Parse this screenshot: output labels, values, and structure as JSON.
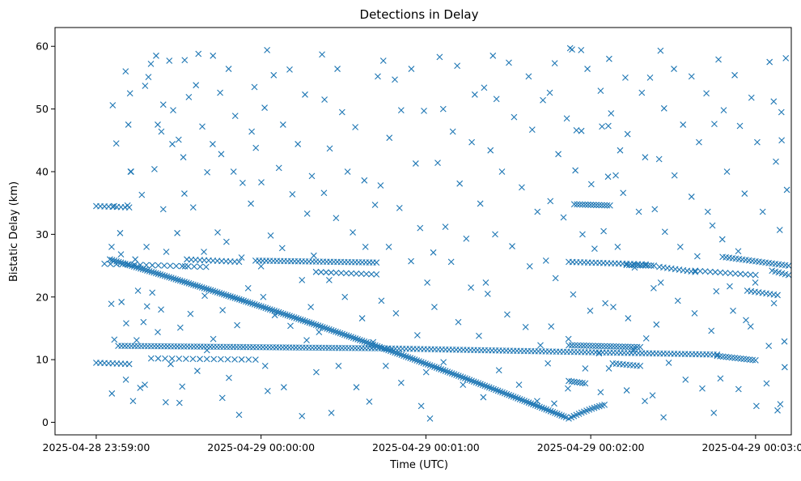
{
  "chart_data": {
    "type": "scatter",
    "title": "Detections in Delay",
    "xlabel": "Time (UTC)",
    "ylabel": "Bistatic Delay (km)",
    "marker": "x",
    "color": "#1f77b4",
    "x_unit": "seconds relative to 2025-04-28 23:59:00",
    "xlim": [
      -15,
      253
    ],
    "ylim": [
      -2,
      63
    ],
    "x_ticks": [
      {
        "value": 0,
        "label": "2025-04-28 23:59:00"
      },
      {
        "value": 60,
        "label": "2025-04-29 00:00:00"
      },
      {
        "value": 120,
        "label": "2025-04-29 00:01:00"
      },
      {
        "value": 180,
        "label": "2025-04-29 00:02:00"
      },
      {
        "value": 240,
        "label": "2025-04-29 00:03:00"
      }
    ],
    "y_ticks": [
      0,
      10,
      20,
      30,
      40,
      50,
      60
    ],
    "grid": false,
    "track_segments": [
      {
        "name": "descending-track",
        "x_start": 5,
        "x_end": 171,
        "y_start": 26,
        "y_end": 0.8,
        "curvature": 0.15,
        "step": 0.8
      },
      {
        "name": "track-12km",
        "x_start": 8,
        "x_end": 105,
        "y_start": 12.2,
        "y_end": 11.8,
        "curvature": 0,
        "step": 1.2
      },
      {
        "name": "track-12km-late",
        "x_start": 172,
        "x_end": 198,
        "y_start": 12.3,
        "y_end": 12.0,
        "curvature": 0,
        "step": 1.1
      },
      {
        "name": "track-11km",
        "x_start": 105,
        "x_end": 226,
        "y_start": 11.8,
        "y_end": 10.8,
        "curvature": 0,
        "step": 1.3
      },
      {
        "name": "track-10km",
        "x_start": 226,
        "x_end": 240,
        "y_start": 10.6,
        "y_end": 9.9,
        "curvature": 0,
        "step": 1.1
      },
      {
        "name": "track-10km-early",
        "x_start": 20,
        "x_end": 58,
        "y_start": 10.2,
        "y_end": 10.0,
        "curvature": 0,
        "step": 2.5
      },
      {
        "name": "track-25km-early",
        "x_start": 3,
        "x_end": 40,
        "y_start": 25.3,
        "y_end": 24.8,
        "curvature": 0,
        "step": 2.2
      },
      {
        "name": "track-26km-1",
        "x_start": 33,
        "x_end": 52,
        "y_start": 26.0,
        "y_end": 25.6,
        "curvature": 0,
        "step": 1.6
      },
      {
        "name": "track-26km-2",
        "x_start": 58,
        "x_end": 102,
        "y_start": 25.8,
        "y_end": 25.5,
        "curvature": 0,
        "step": 1.3
      },
      {
        "name": "track-24km-1",
        "x_start": 80,
        "x_end": 102,
        "y_start": 24.0,
        "y_end": 23.6,
        "curvature": 0,
        "step": 1.8
      },
      {
        "name": "track-25km-mid",
        "x_start": 172,
        "x_end": 200,
        "y_start": 25.6,
        "y_end": 25.2,
        "curvature": 0,
        "step": 1.4
      },
      {
        "name": "track-25km-2",
        "x_start": 193,
        "x_end": 203,
        "y_start": 25.1,
        "y_end": 25.0,
        "curvature": 0,
        "step": 1.0
      },
      {
        "name": "track-24km-2",
        "x_start": 205,
        "x_end": 218,
        "y_start": 24.8,
        "y_end": 24.0,
        "curvature": 0,
        "step": 1.4
      },
      {
        "name": "track-24km-late",
        "x_start": 218,
        "x_end": 240,
        "y_start": 24.2,
        "y_end": 23.5,
        "curvature": 0,
        "step": 1.8
      },
      {
        "name": "track-26km-late",
        "x_start": 228,
        "x_end": 252,
        "y_start": 26.4,
        "y_end": 25.0,
        "curvature": 0,
        "step": 1.2
      },
      {
        "name": "track-21km-late",
        "x_start": 237,
        "x_end": 248,
        "y_start": 21.0,
        "y_end": 20.3,
        "curvature": 0,
        "step": 1.3
      },
      {
        "name": "track-24km-end",
        "x_start": 246,
        "x_end": 252,
        "y_start": 24.2,
        "y_end": 23.5,
        "curvature": 0,
        "step": 1.2
      },
      {
        "name": "track-35km-mid",
        "x_start": 174,
        "x_end": 187,
        "y_start": 34.8,
        "y_end": 34.6,
        "curvature": 0,
        "step": 1.0
      },
      {
        "name": "track-6km",
        "x_start": 172,
        "x_end": 178,
        "y_start": 6.6,
        "y_end": 6.2,
        "curvature": 0,
        "step": 1.0
      },
      {
        "name": "track-9km",
        "x_start": 188,
        "x_end": 198,
        "y_start": 9.4,
        "y_end": 9.0,
        "curvature": 0,
        "step": 1.3
      },
      {
        "name": "track-9km-early",
        "x_start": 0,
        "x_end": 12,
        "y_start": 9.5,
        "y_end": 9.3,
        "curvature": 0,
        "step": 1.5
      },
      {
        "name": "rising-track",
        "x_start": 172,
        "x_end": 185,
        "y_start": 0.6,
        "y_end": 2.8,
        "curvature": -0.3,
        "step": 0.9
      },
      {
        "name": "track-35km-early",
        "x_start": 0,
        "x_end": 12,
        "y_start": 34.5,
        "y_end": 34.3,
        "curvature": 0,
        "step": 1.5
      }
    ],
    "scattered_points": [
      [
        6,
        50.6
      ],
      [
        7.3,
        44.5
      ],
      [
        10.7,
        56.0
      ],
      [
        12.3,
        52.5
      ],
      [
        11.7,
        47.5
      ],
      [
        12.5,
        40.0
      ],
      [
        11.4,
        34.6
      ],
      [
        6.5,
        34.5
      ],
      [
        8.7,
        30.2
      ],
      [
        9.0,
        26.8
      ],
      [
        5.6,
        28.0
      ],
      [
        9.2,
        19.2
      ],
      [
        5.5,
        18.9
      ],
      [
        10.9,
        15.8
      ],
      [
        6.6,
        13.2
      ],
      [
        10.8,
        6.8
      ],
      [
        5.7,
        4.6
      ],
      [
        19.9,
        57.2
      ],
      [
        21.8,
        58.5
      ],
      [
        17.8,
        53.7
      ],
      [
        19.0,
        55.1
      ],
      [
        26.6,
        57.7
      ],
      [
        24.4,
        50.7
      ],
      [
        22.4,
        47.5
      ],
      [
        23.7,
        46.4
      ],
      [
        27.7,
        44.4
      ],
      [
        21.2,
        40.4
      ],
      [
        16.6,
        36.3
      ],
      [
        24.4,
        34.0
      ],
      [
        18.3,
        28.0
      ],
      [
        25.5,
        27.2
      ],
      [
        20.4,
        20.7
      ],
      [
        18.5,
        18.5
      ],
      [
        23.6,
        18.0
      ],
      [
        17.2,
        16.0
      ],
      [
        22.4,
        14.4
      ],
      [
        27.1,
        9.3
      ],
      [
        17.7,
        6.0
      ],
      [
        25.3,
        3.2
      ],
      [
        32.2,
        57.8
      ],
      [
        33.7,
        51.9
      ],
      [
        36.3,
        53.8
      ],
      [
        38.6,
        47.2
      ],
      [
        31.7,
        42.3
      ],
      [
        40.4,
        39.9
      ],
      [
        32.1,
        36.5
      ],
      [
        35.3,
        34.3
      ],
      [
        39.2,
        27.2
      ],
      [
        32.3,
        24.9
      ],
      [
        39.5,
        20.2
      ],
      [
        34.3,
        17.3
      ],
      [
        30.6,
        15.1
      ],
      [
        40.3,
        11.5
      ],
      [
        36.8,
        8.2
      ],
      [
        31.3,
        5.7
      ],
      [
        30.3,
        3.1
      ],
      [
        42.5,
        58.5
      ],
      [
        45.1,
        52.6
      ],
      [
        48.2,
        56.4
      ],
      [
        50.6,
        48.9
      ],
      [
        42.4,
        44.4
      ],
      [
        45.5,
        42.8
      ],
      [
        50.0,
        40.0
      ],
      [
        53.3,
        38.2
      ],
      [
        56.3,
        34.9
      ],
      [
        44.2,
        30.3
      ],
      [
        47.4,
        28.8
      ],
      [
        52.9,
        26.3
      ],
      [
        55.3,
        21.4
      ],
      [
        46.0,
        17.9
      ],
      [
        51.3,
        15.5
      ],
      [
        42.6,
        13.3
      ],
      [
        48.3,
        7.1
      ],
      [
        45.9,
        3.9
      ],
      [
        52.0,
        1.2
      ],
      [
        62.2,
        59.4
      ],
      [
        64.6,
        55.4
      ],
      [
        70.4,
        56.3
      ],
      [
        76.0,
        52.3
      ],
      [
        61.3,
        50.2
      ],
      [
        68.0,
        47.5
      ],
      [
        73.4,
        44.4
      ],
      [
        66.5,
        40.6
      ],
      [
        60.1,
        38.3
      ],
      [
        71.4,
        36.4
      ],
      [
        76.8,
        33.3
      ],
      [
        63.5,
        29.8
      ],
      [
        67.7,
        27.8
      ],
      [
        74.9,
        22.7
      ],
      [
        60.8,
        20.0
      ],
      [
        65.0,
        17.1
      ],
      [
        70.7,
        15.4
      ],
      [
        76.6,
        13.1
      ],
      [
        61.5,
        9.0
      ],
      [
        68.3,
        5.6
      ],
      [
        74.9,
        1.0
      ],
      [
        82.2,
        58.7
      ],
      [
        87.8,
        56.4
      ],
      [
        83.1,
        51.5
      ],
      [
        89.5,
        49.5
      ],
      [
        94.3,
        47.1
      ],
      [
        85.0,
        43.7
      ],
      [
        91.5,
        40.0
      ],
      [
        97.6,
        38.6
      ],
      [
        82.9,
        36.6
      ],
      [
        87.3,
        32.6
      ],
      [
        93.4,
        30.3
      ],
      [
        98.0,
        28.0
      ],
      [
        84.8,
        22.7
      ],
      [
        90.5,
        20.0
      ],
      [
        96.8,
        16.6
      ],
      [
        81.1,
        14.4
      ],
      [
        88.2,
        9.0
      ],
      [
        94.7,
        5.6
      ],
      [
        99.4,
        3.3
      ],
      [
        85.6,
        1.5
      ],
      [
        104.5,
        57.7
      ],
      [
        108.7,
        54.7
      ],
      [
        114.7,
        56.4
      ],
      [
        111.0,
        49.8
      ],
      [
        106.7,
        45.4
      ],
      [
        116.3,
        41.3
      ],
      [
        103.5,
        37.8
      ],
      [
        110.4,
        34.2
      ],
      [
        117.9,
        31.0
      ],
      [
        106.5,
        28.0
      ],
      [
        114.6,
        25.7
      ],
      [
        120.5,
        22.3
      ],
      [
        103.8,
        19.4
      ],
      [
        109.1,
        17.4
      ],
      [
        116.9,
        13.9
      ],
      [
        105.4,
        9.0
      ],
      [
        111.0,
        6.3
      ],
      [
        118.3,
        2.6
      ],
      [
        125.0,
        58.3
      ],
      [
        131.4,
        56.9
      ],
      [
        137.8,
        52.3
      ],
      [
        126.3,
        50.0
      ],
      [
        129.8,
        46.4
      ],
      [
        136.7,
        44.7
      ],
      [
        124.3,
        41.4
      ],
      [
        132.3,
        38.1
      ],
      [
        139.8,
        34.9
      ],
      [
        127.1,
        31.2
      ],
      [
        134.7,
        29.3
      ],
      [
        122.7,
        27.1
      ],
      [
        129.2,
        25.6
      ],
      [
        136.4,
        21.5
      ],
      [
        123.1,
        18.4
      ],
      [
        131.8,
        16.0
      ],
      [
        139.3,
        13.8
      ],
      [
        126.4,
        9.6
      ],
      [
        133.5,
        6.0
      ],
      [
        121.5,
        0.6
      ],
      [
        144.4,
        58.5
      ],
      [
        150.2,
        57.4
      ],
      [
        157.4,
        55.2
      ],
      [
        145.7,
        51.6
      ],
      [
        152.1,
        48.7
      ],
      [
        158.7,
        46.7
      ],
      [
        143.5,
        43.4
      ],
      [
        147.7,
        40.0
      ],
      [
        154.9,
        37.5
      ],
      [
        160.6,
        33.6
      ],
      [
        145.2,
        30.0
      ],
      [
        151.4,
        28.1
      ],
      [
        157.8,
        24.9
      ],
      [
        142.5,
        20.5
      ],
      [
        149.6,
        17.2
      ],
      [
        156.3,
        15.2
      ],
      [
        161.7,
        12.3
      ],
      [
        146.6,
        8.3
      ],
      [
        153.9,
        6.0
      ],
      [
        160.5,
        3.4
      ],
      [
        166.9,
        57.3
      ],
      [
        173.2,
        59.5
      ],
      [
        178.8,
        56.4
      ],
      [
        165.1,
        52.6
      ],
      [
        171.3,
        48.5
      ],
      [
        176.6,
        46.5
      ],
      [
        168.2,
        42.8
      ],
      [
        174.4,
        40.2
      ],
      [
        180.2,
        38.0
      ],
      [
        165.3,
        35.3
      ],
      [
        170.1,
        32.7
      ],
      [
        177.0,
        30.0
      ],
      [
        181.4,
        27.7
      ],
      [
        167.2,
        23.0
      ],
      [
        173.6,
        20.4
      ],
      [
        179.8,
        17.8
      ],
      [
        165.6,
        15.3
      ],
      [
        171.9,
        13.3
      ],
      [
        178.0,
        8.6
      ],
      [
        183.6,
        4.8
      ],
      [
        166.7,
        3.0
      ],
      [
        186.7,
        58.0
      ],
      [
        192.6,
        55.0
      ],
      [
        198.6,
        52.6
      ],
      [
        187.4,
        49.3
      ],
      [
        193.4,
        46.0
      ],
      [
        199.8,
        42.3
      ],
      [
        186.3,
        39.2
      ],
      [
        191.8,
        36.6
      ],
      [
        197.5,
        33.6
      ],
      [
        184.7,
        30.5
      ],
      [
        189.8,
        28.0
      ],
      [
        196.0,
        24.7
      ],
      [
        202.9,
        21.4
      ],
      [
        188.2,
        18.4
      ],
      [
        193.6,
        16.6
      ],
      [
        200.2,
        13.4
      ],
      [
        186.6,
        8.6
      ],
      [
        193.1,
        5.1
      ],
      [
        199.7,
        3.4
      ],
      [
        205.4,
        59.3
      ],
      [
        210.3,
        56.4
      ],
      [
        216.7,
        55.2
      ],
      [
        222.1,
        52.5
      ],
      [
        206.7,
        50.1
      ],
      [
        213.6,
        47.5
      ],
      [
        219.4,
        44.7
      ],
      [
        204.9,
        42.0
      ],
      [
        210.5,
        39.4
      ],
      [
        216.7,
        36.0
      ],
      [
        222.6,
        33.6
      ],
      [
        207.0,
        30.4
      ],
      [
        212.6,
        28.0
      ],
      [
        218.8,
        26.5
      ],
      [
        205.5,
        22.3
      ],
      [
        211.7,
        19.4
      ],
      [
        217.8,
        17.4
      ],
      [
        223.9,
        14.6
      ],
      [
        208.4,
        9.5
      ],
      [
        214.5,
        6.8
      ],
      [
        220.6,
        5.4
      ],
      [
        206.5,
        0.8
      ],
      [
        226.5,
        57.9
      ],
      [
        232.4,
        55.4
      ],
      [
        238.5,
        51.8
      ],
      [
        245.1,
        57.5
      ],
      [
        228.4,
        49.8
      ],
      [
        234.3,
        47.3
      ],
      [
        240.6,
        44.7
      ],
      [
        247.4,
        41.6
      ],
      [
        229.6,
        40.0
      ],
      [
        236.0,
        36.5
      ],
      [
        242.6,
        33.6
      ],
      [
        248.8,
        30.7
      ],
      [
        227.9,
        29.2
      ],
      [
        233.7,
        27.3
      ],
      [
        239.9,
        22.3
      ],
      [
        246.7,
        19.0
      ],
      [
        231.8,
        17.8
      ],
      [
        238.2,
        15.3
      ],
      [
        244.8,
        12.2
      ],
      [
        250.6,
        8.8
      ],
      [
        227.2,
        7.0
      ],
      [
        233.8,
        5.3
      ],
      [
        240.3,
        2.6
      ],
      [
        248.0,
        1.9
      ],
      [
        251.4,
        37.1
      ],
      [
        249.4,
        49.5
      ],
      [
        246.6,
        51.2
      ],
      [
        251.0,
        58.1
      ],
      [
        249.5,
        45.0
      ],
      [
        250.5,
        12.9
      ],
      [
        249.0,
        2.9
      ],
      [
        244.0,
        6.2
      ],
      [
        236.5,
        16.3
      ],
      [
        230.6,
        21.7
      ],
      [
        12.7,
        40.0
      ],
      [
        14.2,
        26.0
      ],
      [
        15.2,
        21.0
      ],
      [
        14.7,
        13.1
      ],
      [
        16.0,
        5.5
      ],
      [
        13.4,
        3.4
      ],
      [
        29.5,
        30.2
      ],
      [
        28.0,
        49.8
      ],
      [
        30.0,
        45.1
      ],
      [
        37.2,
        58.8
      ],
      [
        57.6,
        53.5
      ],
      [
        56.6,
        46.4
      ],
      [
        58.1,
        43.8
      ],
      [
        60.0,
        24.9
      ],
      [
        62.4,
        5.0
      ],
      [
        78.5,
        39.3
      ],
      [
        79.2,
        26.6
      ],
      [
        78.1,
        18.4
      ],
      [
        80.1,
        8.0
      ],
      [
        100.8,
        12.8
      ],
      [
        101.5,
        34.7
      ],
      [
        102.5,
        55.2
      ],
      [
        119.3,
        49.7
      ],
      [
        120.1,
        8.0
      ],
      [
        141.2,
        53.4
      ],
      [
        141.8,
        22.3
      ],
      [
        140.9,
        4.0
      ],
      [
        162.6,
        51.4
      ],
      [
        163.7,
        25.8
      ],
      [
        164.4,
        9.4
      ],
      [
        184.1,
        47.2
      ],
      [
        185.3,
        19.0
      ],
      [
        183.0,
        11.0
      ],
      [
        203.3,
        34.0
      ],
      [
        203.9,
        15.6
      ],
      [
        202.5,
        4.3
      ],
      [
        225.0,
        47.6
      ],
      [
        224.3,
        31.4
      ],
      [
        225.7,
        20.9
      ],
      [
        224.8,
        1.5
      ],
      [
        186.4,
        47.3
      ],
      [
        189.1,
        39.4
      ],
      [
        183.6,
        52.9
      ],
      [
        195.5,
        11.6
      ],
      [
        171.7,
        5.4
      ],
      [
        172.5,
        59.7
      ],
      [
        176.5,
        59.4
      ],
      [
        174.8,
        46.6
      ],
      [
        190.7,
        43.4
      ],
      [
        201.6,
        55.0
      ]
    ]
  }
}
